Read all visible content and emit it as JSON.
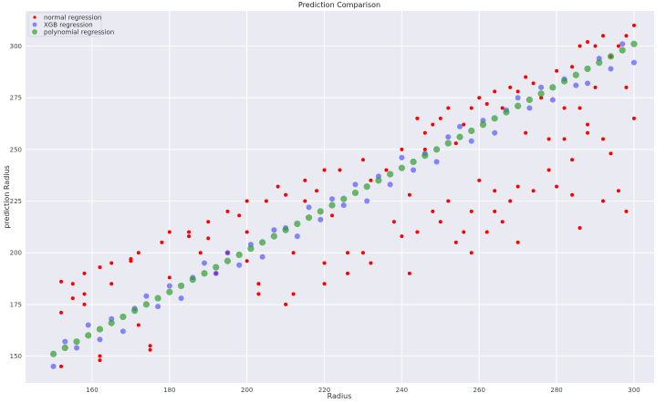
{
  "chart_data": {
    "type": "scatter",
    "title": "Prediction Comparison",
    "xlabel": "Radius",
    "ylabel": "prediction Radius",
    "xlim": [
      142.8,
      305.2
    ],
    "ylim": [
      137,
      317
    ],
    "xticks": [
      160,
      180,
      200,
      220,
      240,
      260,
      280,
      300
    ],
    "yticks": [
      150,
      175,
      200,
      225,
      250,
      275,
      300
    ],
    "grid": true,
    "background": "#eaeaf2",
    "legend_position": "top-left",
    "series": [
      {
        "name": "normal regression",
        "color": "#ff0000",
        "opacity": 1,
        "x": [
          152,
          152,
          152,
          155,
          155,
          158,
          158,
          158,
          162,
          162,
          162,
          165,
          165,
          170,
          170,
          172,
          172,
          175,
          175,
          178,
          180,
          180,
          185,
          185,
          188,
          190,
          190,
          192,
          195,
          195,
          198,
          200,
          200,
          200,
          203,
          203,
          205,
          208,
          210,
          210,
          212,
          212,
          215,
          215,
          218,
          220,
          220,
          220,
          222,
          224,
          226,
          226,
          230,
          230,
          232,
          232,
          236,
          238,
          240,
          240,
          242,
          242,
          244,
          244,
          246,
          246,
          248,
          248,
          250,
          250,
          252,
          252,
          254,
          254,
          256,
          256,
          258,
          258,
          258,
          260,
          260,
          262,
          262,
          264,
          264,
          264,
          266,
          266,
          268,
          268,
          270,
          270,
          270,
          272,
          272,
          274,
          274,
          276,
          278,
          278,
          280,
          280,
          282,
          282,
          284,
          284,
          284,
          286,
          286,
          286,
          288,
          288,
          288,
          290,
          290,
          292,
          292,
          292,
          294,
          294,
          296,
          296,
          298,
          298,
          298,
          300,
          300
        ],
        "y": [
          171,
          186,
          145,
          185,
          178,
          180,
          175,
          190,
          150,
          148,
          193,
          195,
          185,
          196,
          197,
          200,
          165,
          155,
          153,
          205,
          210,
          188,
          210,
          208,
          200,
          215,
          207,
          190,
          220,
          200,
          218,
          225,
          210,
          196,
          185,
          180,
          225,
          232,
          228,
          175,
          200,
          180,
          235,
          225,
          230,
          240,
          195,
          185,
          218,
          240,
          200,
          190,
          245,
          200,
          235,
          195,
          240,
          215,
          250,
          208,
          228,
          190,
          265,
          210,
          258,
          250,
          262,
          220,
          265,
          215,
          270,
          225,
          253,
          205,
          262,
          210,
          270,
          220,
          200,
          275,
          235,
          272,
          210,
          278,
          230,
          220,
          270,
          215,
          280,
          225,
          278,
          232,
          205,
          285,
          258,
          282,
          230,
          275,
          255,
          240,
          288,
          232,
          270,
          255,
          290,
          245,
          228,
          300,
          270,
          212,
          302,
          262,
          258,
          300,
          280,
          305,
          255,
          225,
          295,
          248,
          300,
          230,
          305,
          280,
          220,
          310,
          265
        ]
      },
      {
        "name": "XGB regression",
        "color": "#4b4bff",
        "opacity": 0.65,
        "x": [
          150,
          153,
          156,
          159,
          162,
          165,
          168,
          171,
          174,
          177,
          180,
          183,
          186,
          189,
          192,
          195,
          198,
          201,
          204,
          207,
          210,
          213,
          216,
          219,
          222,
          225,
          228,
          231,
          234,
          237,
          240,
          243,
          246,
          249,
          252,
          255,
          258,
          261,
          264,
          267,
          270,
          273,
          276,
          279,
          282,
          285,
          288,
          291,
          294,
          297,
          300
        ],
        "y": [
          145,
          157,
          154,
          165,
          158,
          168,
          162,
          173,
          179,
          174,
          184,
          178,
          188,
          195,
          190,
          200,
          194,
          204,
          198,
          211,
          212,
          208,
          222,
          216,
          226,
          223,
          233,
          225,
          237,
          233,
          246,
          240,
          248,
          244,
          256,
          261,
          254,
          264,
          258,
          269,
          275,
          270,
          280,
          274,
          284,
          281,
          282,
          294,
          289,
          301,
          292
        ]
      },
      {
        "name": "polynomial regression",
        "color": "#2e9e2e",
        "opacity": 0.7,
        "x": [
          150,
          153,
          156,
          159,
          162,
          165,
          168,
          171,
          174,
          177,
          180,
          183,
          186,
          189,
          192,
          195,
          198,
          201,
          204,
          207,
          210,
          213,
          216,
          219,
          222,
          225,
          228,
          231,
          234,
          237,
          240,
          243,
          246,
          249,
          252,
          255,
          258,
          261,
          264,
          267,
          270,
          273,
          276,
          279,
          282,
          285,
          288,
          291,
          294,
          297,
          300
        ],
        "y": [
          151,
          154,
          157,
          160,
          163,
          166,
          169,
          172,
          175,
          178,
          181,
          184,
          187,
          190,
          193,
          196,
          199,
          202,
          205,
          208,
          211,
          214,
          217,
          220,
          223,
          226,
          229,
          232,
          235,
          238,
          241,
          244,
          247,
          250,
          253,
          256,
          259,
          262,
          265,
          268,
          271,
          274,
          277,
          280,
          283,
          286,
          289,
          292,
          295,
          298,
          301
        ]
      }
    ]
  }
}
